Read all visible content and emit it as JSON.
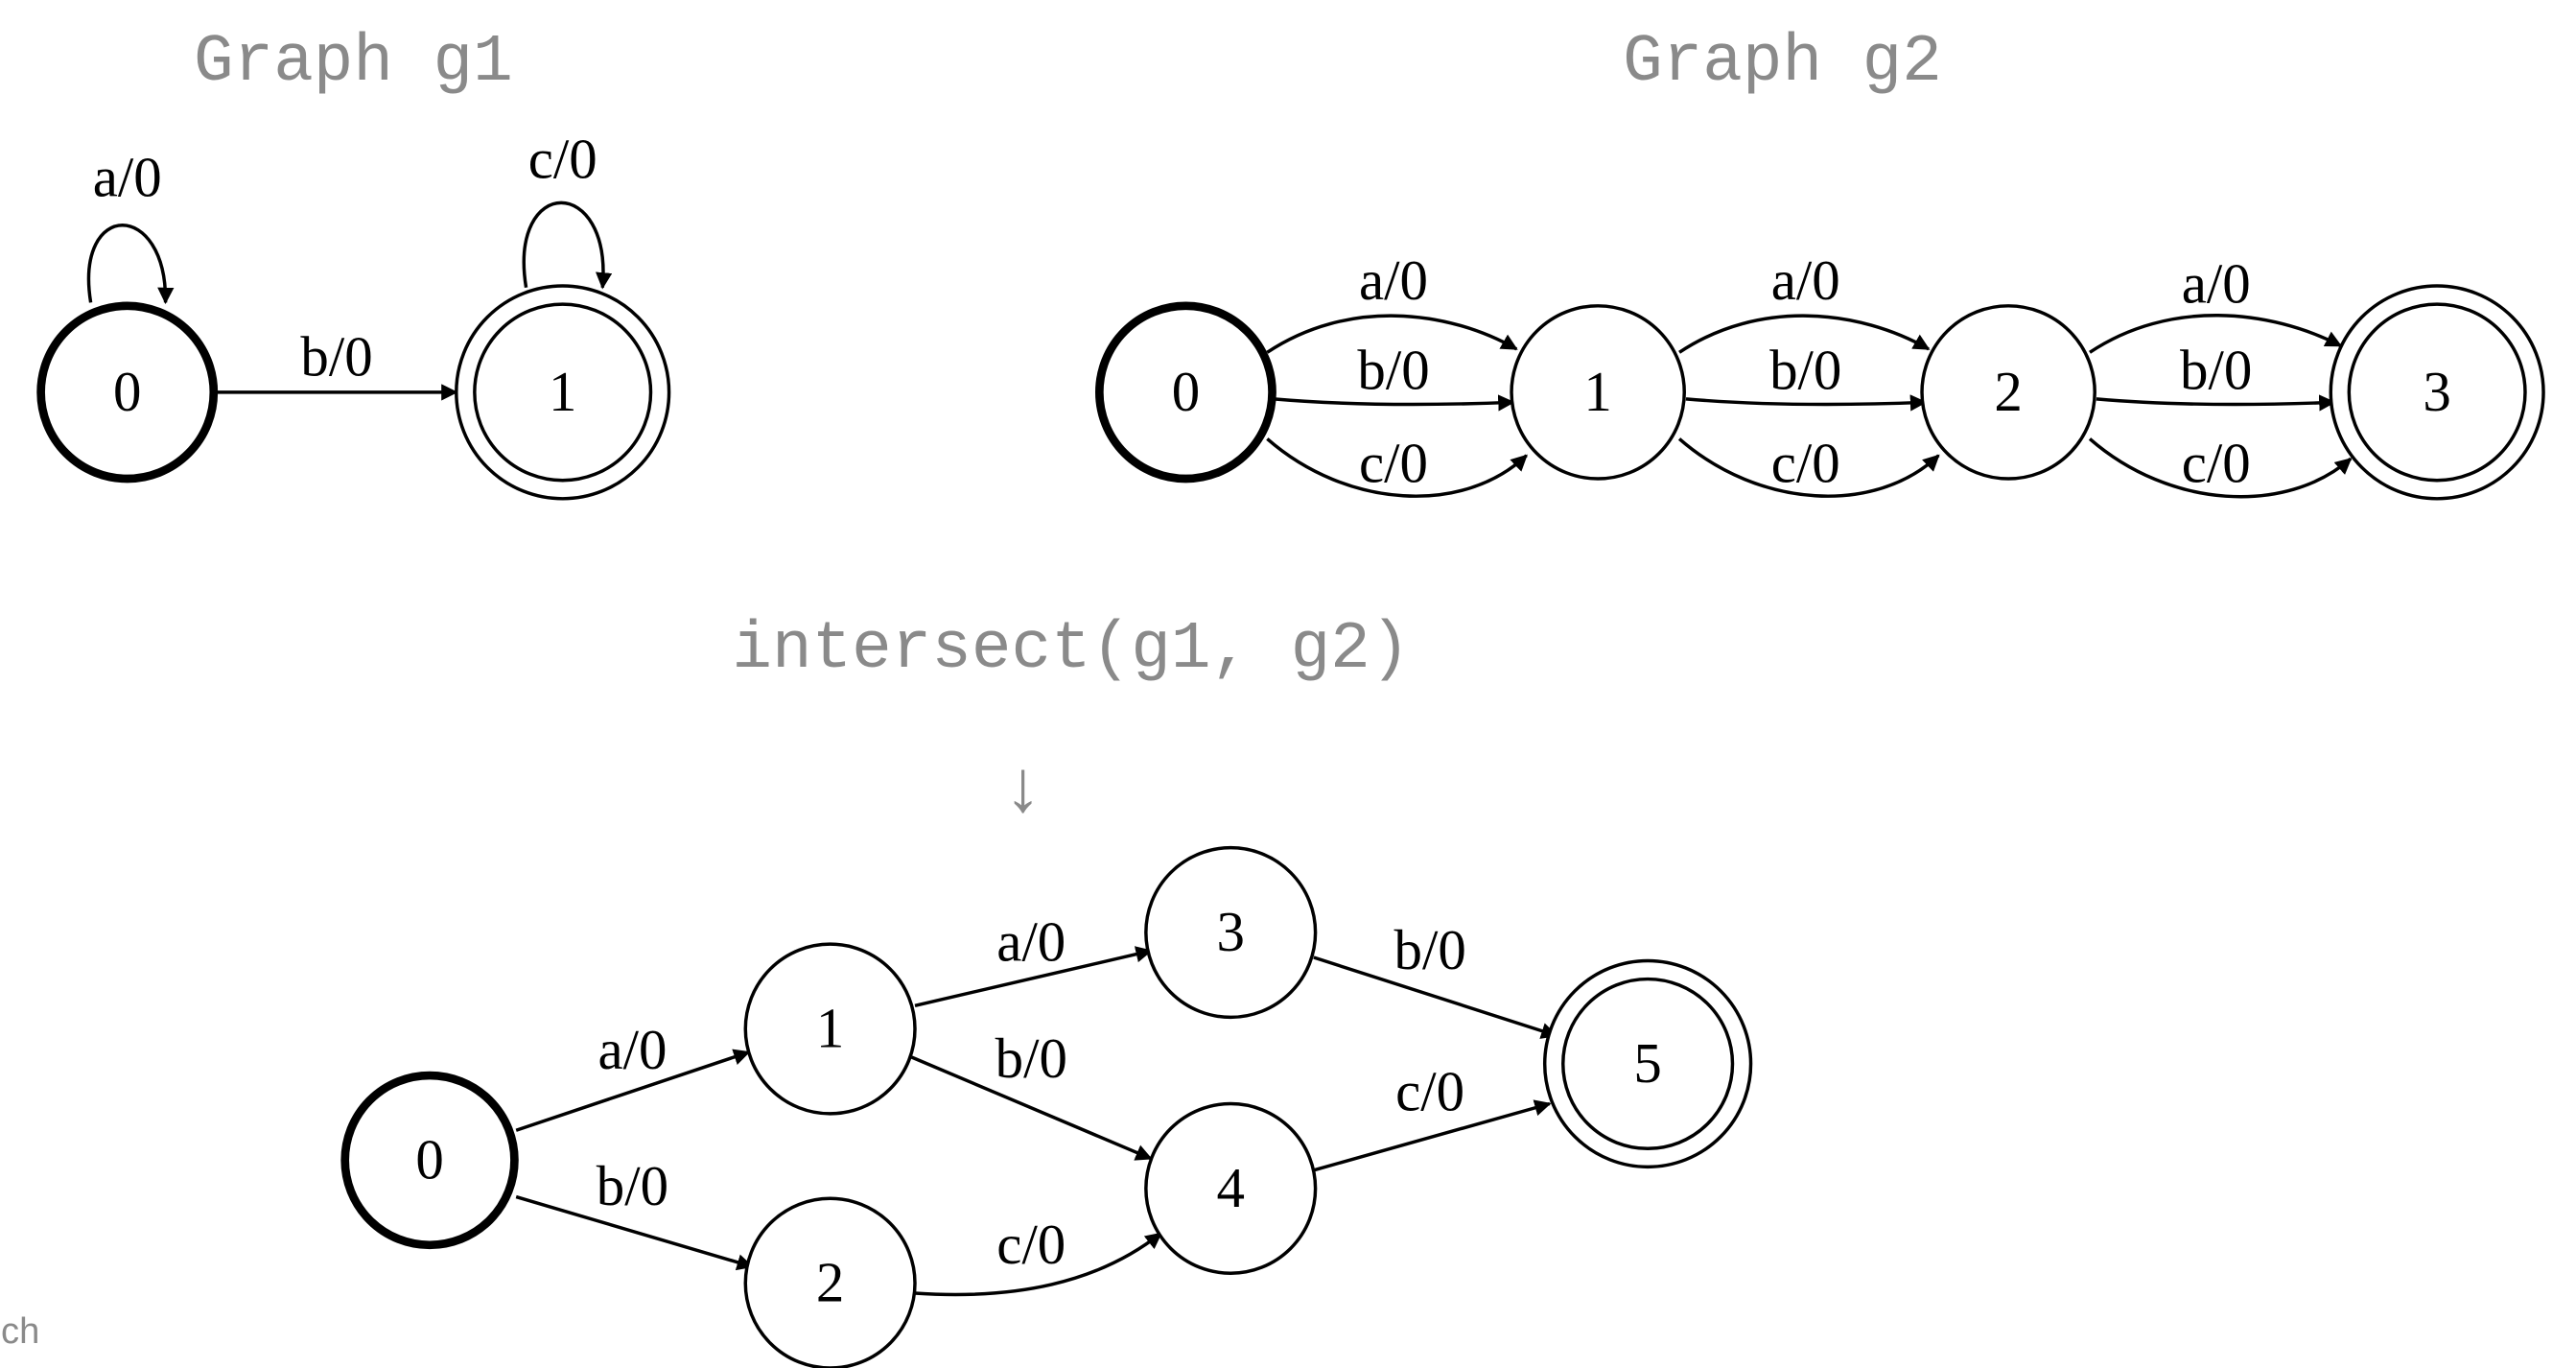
{
  "title_g1": "Graph g1",
  "title_g2": "Graph g2",
  "operation": "intersect(g1, g2)",
  "arrow_glyph": "↓",
  "corner_text": "ch",
  "graphs": {
    "g1": {
      "nodes": [
        {
          "id": "0",
          "label": "0",
          "start": true,
          "accept": false
        },
        {
          "id": "1",
          "label": "1",
          "start": false,
          "accept": true
        }
      ],
      "edges": [
        {
          "from": "0",
          "to": "0",
          "label": "a/0"
        },
        {
          "from": "0",
          "to": "1",
          "label": "b/0"
        },
        {
          "from": "1",
          "to": "1",
          "label": "c/0"
        }
      ]
    },
    "g2": {
      "nodes": [
        {
          "id": "0",
          "label": "0",
          "start": true,
          "accept": false
        },
        {
          "id": "1",
          "label": "1",
          "start": false,
          "accept": false
        },
        {
          "id": "2",
          "label": "2",
          "start": false,
          "accept": false
        },
        {
          "id": "3",
          "label": "3",
          "start": false,
          "accept": true
        }
      ],
      "edges": [
        {
          "from": "0",
          "to": "1",
          "label": "a/0"
        },
        {
          "from": "0",
          "to": "1",
          "label": "b/0"
        },
        {
          "from": "0",
          "to": "1",
          "label": "c/0"
        },
        {
          "from": "1",
          "to": "2",
          "label": "a/0"
        },
        {
          "from": "1",
          "to": "2",
          "label": "b/0"
        },
        {
          "from": "1",
          "to": "2",
          "label": "c/0"
        },
        {
          "from": "2",
          "to": "3",
          "label": "a/0"
        },
        {
          "from": "2",
          "to": "3",
          "label": "b/0"
        },
        {
          "from": "2",
          "to": "3",
          "label": "c/0"
        }
      ]
    },
    "result": {
      "nodes": [
        {
          "id": "0",
          "label": "0",
          "start": true,
          "accept": false
        },
        {
          "id": "1",
          "label": "1",
          "start": false,
          "accept": false
        },
        {
          "id": "2",
          "label": "2",
          "start": false,
          "accept": false
        },
        {
          "id": "3",
          "label": "3",
          "start": false,
          "accept": false
        },
        {
          "id": "4",
          "label": "4",
          "start": false,
          "accept": false
        },
        {
          "id": "5",
          "label": "5",
          "start": false,
          "accept": true
        }
      ],
      "edges": [
        {
          "from": "0",
          "to": "1",
          "label": "a/0"
        },
        {
          "from": "0",
          "to": "2",
          "label": "b/0"
        },
        {
          "from": "1",
          "to": "3",
          "label": "a/0"
        },
        {
          "from": "1",
          "to": "4",
          "label": "b/0"
        },
        {
          "from": "2",
          "to": "4",
          "label": "c/0"
        },
        {
          "from": "3",
          "to": "5",
          "label": "b/0"
        },
        {
          "from": "4",
          "to": "5",
          "label": "c/0"
        }
      ]
    }
  }
}
